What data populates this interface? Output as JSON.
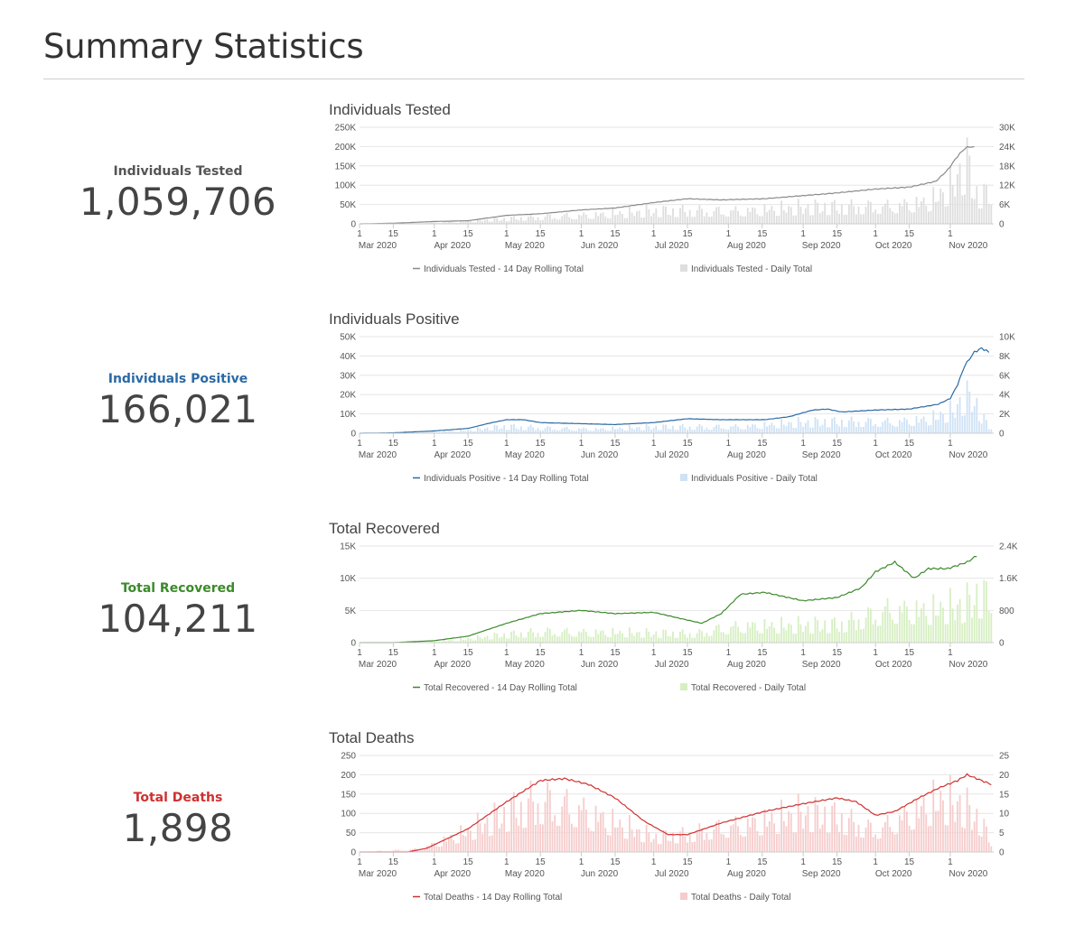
{
  "page": {
    "title": "Summary Statistics"
  },
  "stats": [
    {
      "label": "Individuals Tested",
      "value": "1,059,706",
      "color": "#555555"
    },
    {
      "label": "Individuals Positive",
      "value": "166,021",
      "color": "#2b6aa6"
    },
    {
      "label": "Total Recovered",
      "value": "104,211",
      "color": "#3b8a2a"
    },
    {
      "label": "Total Deaths",
      "value": "1,898",
      "color": "#d03030"
    }
  ],
  "chart_data": [
    {
      "type": "bar+line",
      "title": "Individuals Tested",
      "left_axis": {
        "range": [
          0,
          250000
        ],
        "ticks": [
          "0",
          "50K",
          "100K",
          "150K",
          "200K",
          "250K"
        ]
      },
      "right_axis": {
        "range": [
          0,
          30000
        ],
        "ticks": [
          "0",
          "6K",
          "12K",
          "18K",
          "24K",
          "30K"
        ]
      },
      "x_ticks": [
        "1",
        "15",
        "1",
        "15",
        "1",
        "15",
        "1",
        "15",
        "1",
        "15",
        "1",
        "15",
        "1",
        "15",
        "1",
        "15",
        "1"
      ],
      "x_months": [
        "Mar 2020",
        "Apr 2020",
        "May 2020",
        "Jun 2020",
        "Jul 2020",
        "Aug 2020",
        "Sep 2020",
        "Oct 2020",
        "Nov 2020"
      ],
      "line_color": "#8a8a8a",
      "bar_color": "#dedede",
      "series": [
        {
          "name": "Individuals Tested - 14 Day Rolling Total",
          "kind": "line",
          "axis": "left",
          "points": [
            [
              0,
              0
            ],
            [
              14,
              1500
            ],
            [
              31,
              6000
            ],
            [
              45,
              8000
            ],
            [
              61,
              22000
            ],
            [
              75,
              26000
            ],
            [
              92,
              36000
            ],
            [
              106,
              41000
            ],
            [
              122,
              55000
            ],
            [
              136,
              65000
            ],
            [
              150,
              62000
            ],
            [
              168,
              65000
            ],
            [
              184,
              73000
            ],
            [
              198,
              80000
            ],
            [
              214,
              90000
            ],
            [
              228,
              95000
            ],
            [
              239,
              110000
            ],
            [
              244,
              140000
            ],
            [
              248,
              175000
            ],
            [
              251,
              195000
            ],
            [
              253,
              200000
            ],
            [
              255,
              198000
            ]
          ]
        },
        {
          "name": "Individuals Tested - Daily Total",
          "kind": "bar",
          "axis": "right",
          "points": [
            [
              0,
              0
            ],
            [
              20,
              300
            ],
            [
              40,
              800
            ],
            [
              60,
              2000
            ],
            [
              80,
              3200
            ],
            [
              100,
              4000
            ],
            [
              120,
              5000
            ],
            [
              140,
              5500
            ],
            [
              160,
              5800
            ],
            [
              180,
              6500
            ],
            [
              200,
              7000
            ],
            [
              220,
              8000
            ],
            [
              236,
              9500
            ],
            [
              244,
              14000
            ],
            [
              250,
              22000
            ],
            [
              253,
              24000
            ],
            [
              255,
              12000
            ]
          ]
        }
      ]
    },
    {
      "type": "bar+line",
      "title": "Individuals Positive",
      "left_axis": {
        "range": [
          0,
          50000
        ],
        "ticks": [
          "0",
          "10K",
          "20K",
          "30K",
          "40K",
          "50K"
        ]
      },
      "right_axis": {
        "range": [
          0,
          10000
        ],
        "ticks": [
          "0",
          "2K",
          "4K",
          "6K",
          "8K",
          "10K"
        ]
      },
      "x_ticks": [
        "1",
        "15",
        "1",
        "15",
        "1",
        "15",
        "1",
        "15",
        "1",
        "15",
        "1",
        "15",
        "1",
        "15",
        "1",
        "15",
        "1"
      ],
      "x_months": [
        "Mar 2020",
        "Apr 2020",
        "May 2020",
        "Jun 2020",
        "Jul 2020",
        "Aug 2020",
        "Sep 2020",
        "Oct 2020",
        "Nov 2020"
      ],
      "line_color": "#2b6aa6",
      "bar_color": "#cfe2f5",
      "series": [
        {
          "name": "Individuals Positive - 14 Day Rolling Total",
          "kind": "line",
          "axis": "left",
          "points": [
            [
              0,
              0
            ],
            [
              14,
              200
            ],
            [
              31,
              1200
            ],
            [
              45,
              2500
            ],
            [
              55,
              5500
            ],
            [
              61,
              7000
            ],
            [
              68,
              7000
            ],
            [
              75,
              5500
            ],
            [
              90,
              5000
            ],
            [
              106,
              4500
            ],
            [
              122,
              5500
            ],
            [
              136,
              7500
            ],
            [
              150,
              7000
            ],
            [
              168,
              7000
            ],
            [
              178,
              8500
            ],
            [
              188,
              12000
            ],
            [
              194,
              12500
            ],
            [
              200,
              11000
            ],
            [
              214,
              12000
            ],
            [
              228,
              12500
            ],
            [
              240,
              15000
            ],
            [
              245,
              18000
            ],
            [
              248,
              25000
            ],
            [
              251,
              35000
            ],
            [
              255,
              42000
            ],
            [
              258,
              44000
            ],
            [
              261,
              42000
            ]
          ]
        },
        {
          "name": "Individuals Positive - Daily Total",
          "kind": "bar",
          "axis": "right",
          "points": [
            [
              0,
              0
            ],
            [
              20,
              100
            ],
            [
              45,
              400
            ],
            [
              60,
              900
            ],
            [
              80,
              700
            ],
            [
              100,
              600
            ],
            [
              120,
              800
            ],
            [
              140,
              900
            ],
            [
              160,
              1000
            ],
            [
              180,
              1400
            ],
            [
              200,
              1600
            ],
            [
              220,
              1700
            ],
            [
              236,
              2000
            ],
            [
              246,
              3000
            ],
            [
              250,
              4500
            ],
            [
              254,
              5000
            ],
            [
              258,
              2500
            ],
            [
              261,
              800
            ]
          ]
        }
      ]
    },
    {
      "type": "bar+line",
      "title": "Total Recovered",
      "left_axis": {
        "range": [
          0,
          15000
        ],
        "ticks": [
          "0",
          "5K",
          "10K",
          "15K"
        ]
      },
      "right_axis": {
        "range": [
          0,
          2400
        ],
        "ticks": [
          "0",
          "800",
          "1.6K",
          "2.4K"
        ]
      },
      "x_ticks": [
        "1",
        "15",
        "1",
        "15",
        "1",
        "15",
        "1",
        "15",
        "1",
        "15",
        "1",
        "15",
        "1",
        "15",
        "1",
        "15",
        "1"
      ],
      "x_months": [
        "Mar 2020",
        "Apr 2020",
        "May 2020",
        "Jun 2020",
        "Jul 2020",
        "Aug 2020",
        "Sep 2020",
        "Oct 2020",
        "Nov 2020"
      ],
      "line_color": "#3b8a2a",
      "bar_color": "#d6efc2",
      "series": [
        {
          "name": "Total Recovered - 14 Day Rolling Total",
          "kind": "line",
          "axis": "left",
          "points": [
            [
              0,
              0
            ],
            [
              14,
              0
            ],
            [
              31,
              300
            ],
            [
              45,
              1000
            ],
            [
              61,
              3000
            ],
            [
              75,
              4500
            ],
            [
              92,
              5000
            ],
            [
              106,
              4500
            ],
            [
              122,
              4700
            ],
            [
              136,
              3500
            ],
            [
              142,
              3000
            ],
            [
              150,
              4500
            ],
            [
              158,
              7500
            ],
            [
              168,
              7800
            ],
            [
              184,
              6500
            ],
            [
              198,
              7000
            ],
            [
              208,
              8500
            ],
            [
              214,
              11000
            ],
            [
              222,
              12500
            ],
            [
              230,
              10000
            ],
            [
              236,
              11500
            ],
            [
              244,
              11500
            ],
            [
              252,
              12500
            ],
            [
              256,
              13500
            ]
          ]
        },
        {
          "name": "Total Recovered - Daily Total",
          "kind": "bar",
          "axis": "right",
          "points": [
            [
              0,
              0
            ],
            [
              20,
              20
            ],
            [
              40,
              80
            ],
            [
              60,
              250
            ],
            [
              80,
              380
            ],
            [
              100,
              350
            ],
            [
              120,
              300
            ],
            [
              140,
              300
            ],
            [
              150,
              500
            ],
            [
              160,
              600
            ],
            [
              180,
              550
            ],
            [
              200,
              600
            ],
            [
              214,
              1000
            ],
            [
              220,
              1200
            ],
            [
              236,
              1100
            ],
            [
              250,
              1200
            ],
            [
              256,
              1500
            ]
          ]
        }
      ]
    },
    {
      "type": "bar+line",
      "title": "Total Deaths",
      "left_axis": {
        "range": [
          0,
          250
        ],
        "ticks": [
          "0",
          "50",
          "100",
          "150",
          "200",
          "250"
        ]
      },
      "right_axis": {
        "range": [
          0,
          25
        ],
        "ticks": [
          "0",
          "5",
          "10",
          "15",
          "20",
          "25"
        ]
      },
      "x_ticks": [
        "1",
        "15",
        "1",
        "15",
        "1",
        "15",
        "1",
        "15",
        "1",
        "15",
        "1",
        "15",
        "1",
        "15",
        "1",
        "15",
        "1"
      ],
      "x_months": [
        "Mar 2020",
        "Apr 2020",
        "May 2020",
        "Jun 2020",
        "Jul 2020",
        "Aug 2020",
        "Sep 2020",
        "Oct 2020",
        "Nov 2020"
      ],
      "line_color": "#d03030",
      "bar_color": "#f6cccc",
      "series": [
        {
          "name": "Total Deaths - 14 Day Rolling Total",
          "kind": "line",
          "axis": "left",
          "points": [
            [
              0,
              0
            ],
            [
              20,
              0
            ],
            [
              28,
              10
            ],
            [
              45,
              60
            ],
            [
              61,
              130
            ],
            [
              75,
              185
            ],
            [
              85,
              190
            ],
            [
              95,
              175
            ],
            [
              106,
              140
            ],
            [
              118,
              80
            ],
            [
              128,
              45
            ],
            [
              136,
              45
            ],
            [
              150,
              75
            ],
            [
              168,
              105
            ],
            [
              184,
              125
            ],
            [
              198,
              140
            ],
            [
              206,
              130
            ],
            [
              214,
              95
            ],
            [
              222,
              105
            ],
            [
              232,
              140
            ],
            [
              240,
              165
            ],
            [
              248,
              185
            ],
            [
              252,
              200
            ],
            [
              256,
              190
            ],
            [
              262,
              175
            ]
          ]
        },
        {
          "name": "Total Deaths - Daily Total",
          "kind": "bar",
          "axis": "right",
          "points": [
            [
              0,
              0
            ],
            [
              25,
              1
            ],
            [
              45,
              7
            ],
            [
              61,
              13
            ],
            [
              75,
              18
            ],
            [
              90,
              16
            ],
            [
              106,
              10
            ],
            [
              122,
              5
            ],
            [
              136,
              6
            ],
            [
              150,
              9
            ],
            [
              168,
              11
            ],
            [
              184,
              13
            ],
            [
              198,
              12
            ],
            [
              214,
              8
            ],
            [
              228,
              14
            ],
            [
              240,
              18
            ],
            [
              250,
              16
            ],
            [
              258,
              10
            ],
            [
              262,
              3
            ]
          ]
        }
      ]
    }
  ]
}
